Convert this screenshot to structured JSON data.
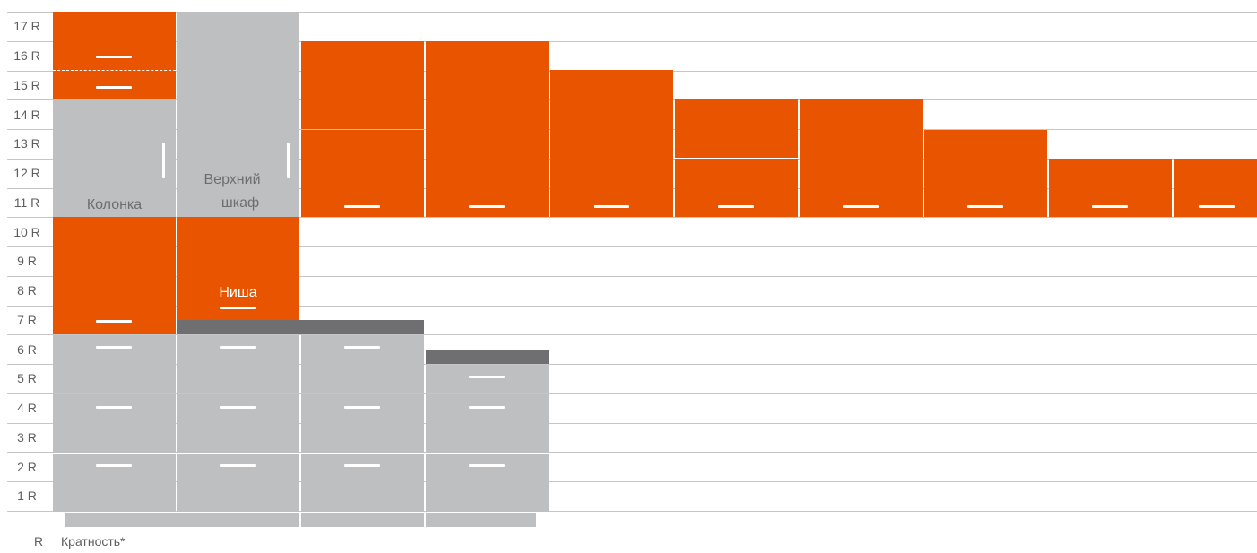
{
  "colors": {
    "front": "#e85400",
    "carcass": "#bebfc1",
    "countertop": "#6f6f72",
    "grid": "#c6c6c6",
    "handle": "#ffffff",
    "text": "#5e5e5e"
  },
  "rows": [
    "17 R",
    "16 R",
    "15 R",
    "14 R",
    "13 R",
    "12 R",
    "11 R",
    "10 R",
    "9 R",
    "8 R",
    "7 R",
    "6 R",
    "5 R",
    "4 R",
    "3 R",
    "2 R",
    "1 R"
  ],
  "labels": {
    "column": "Колонка",
    "upper_line1": "Верхний",
    "upper_line2": "шкаф",
    "niche": "Ниша"
  },
  "legend": {
    "symbol": "R",
    "text": "Кратность*"
  }
}
